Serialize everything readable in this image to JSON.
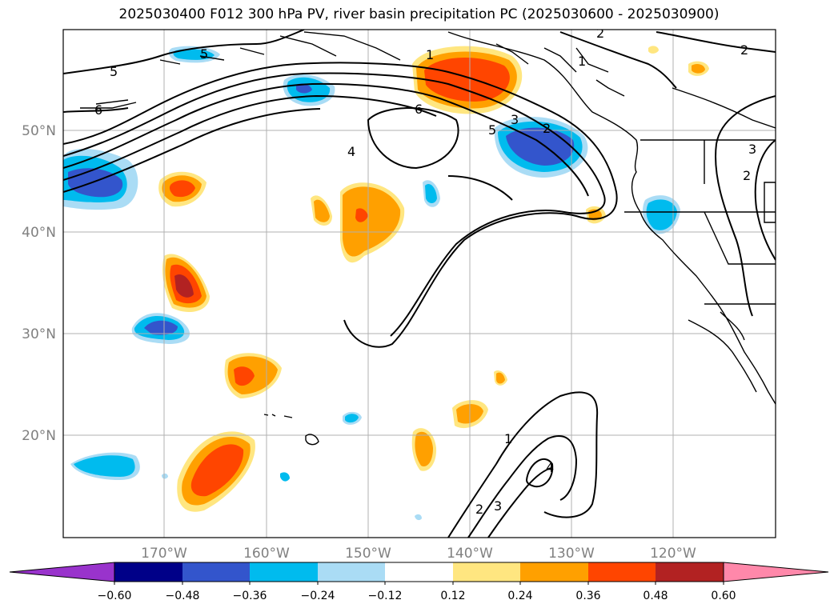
{
  "title": "2025030400 F012 300 hPa PV, river basin precipitation PC (2025030600 - 2025030900)",
  "map": {
    "lat_labels": [
      "50°N",
      "40°N",
      "30°N",
      "20°N"
    ],
    "lon_labels": [
      "170°W",
      "160°W",
      "150°W",
      "140°W",
      "130°W",
      "120°W"
    ],
    "contour_labels": [
      "5",
      "5",
      "6",
      "1",
      "6",
      "4",
      "3",
      "2",
      "5",
      "1",
      "2",
      "2",
      "3",
      "2",
      "1",
      "2",
      "3",
      "4"
    ]
  },
  "colorbar": {
    "tick_labels": [
      "−0.60",
      "−0.48",
      "−0.36",
      "−0.24",
      "−0.12",
      "0.12",
      "0.24",
      "0.36",
      "0.48",
      "0.60"
    ],
    "colors": [
      "#9933cc",
      "#000088",
      "#3355cc",
      "#00bbee",
      "#aadcf5",
      "#ffffff",
      "#ffe680",
      "#ffa000",
      "#ff4500",
      "#b22222",
      "#ff88aa"
    ]
  }
}
